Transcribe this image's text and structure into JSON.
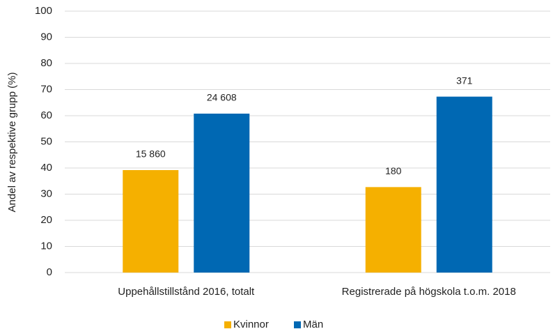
{
  "chart_data": {
    "type": "bar",
    "y_label": "Andel av respektive grupp (%)",
    "categories": [
      "Uppehållstillstånd 2016, totalt",
      "Registrerade på högskola t.o.m. 2018"
    ],
    "series": [
      {
        "name": "Kvinnor",
        "color": "#f5b000",
        "values": [
          39.2,
          32.7
        ],
        "count_labels": [
          "15 860",
          "180"
        ]
      },
      {
        "name": "Män",
        "color": "#0068b3",
        "values": [
          60.8,
          67.3
        ],
        "count_labels": [
          "24 608",
          "371"
        ]
      }
    ],
    "ylim": [
      0,
      100
    ],
    "yticks": [
      0,
      10,
      20,
      30,
      40,
      50,
      60,
      70,
      80,
      90,
      100
    ],
    "grid": true,
    "legend": "bottom"
  }
}
